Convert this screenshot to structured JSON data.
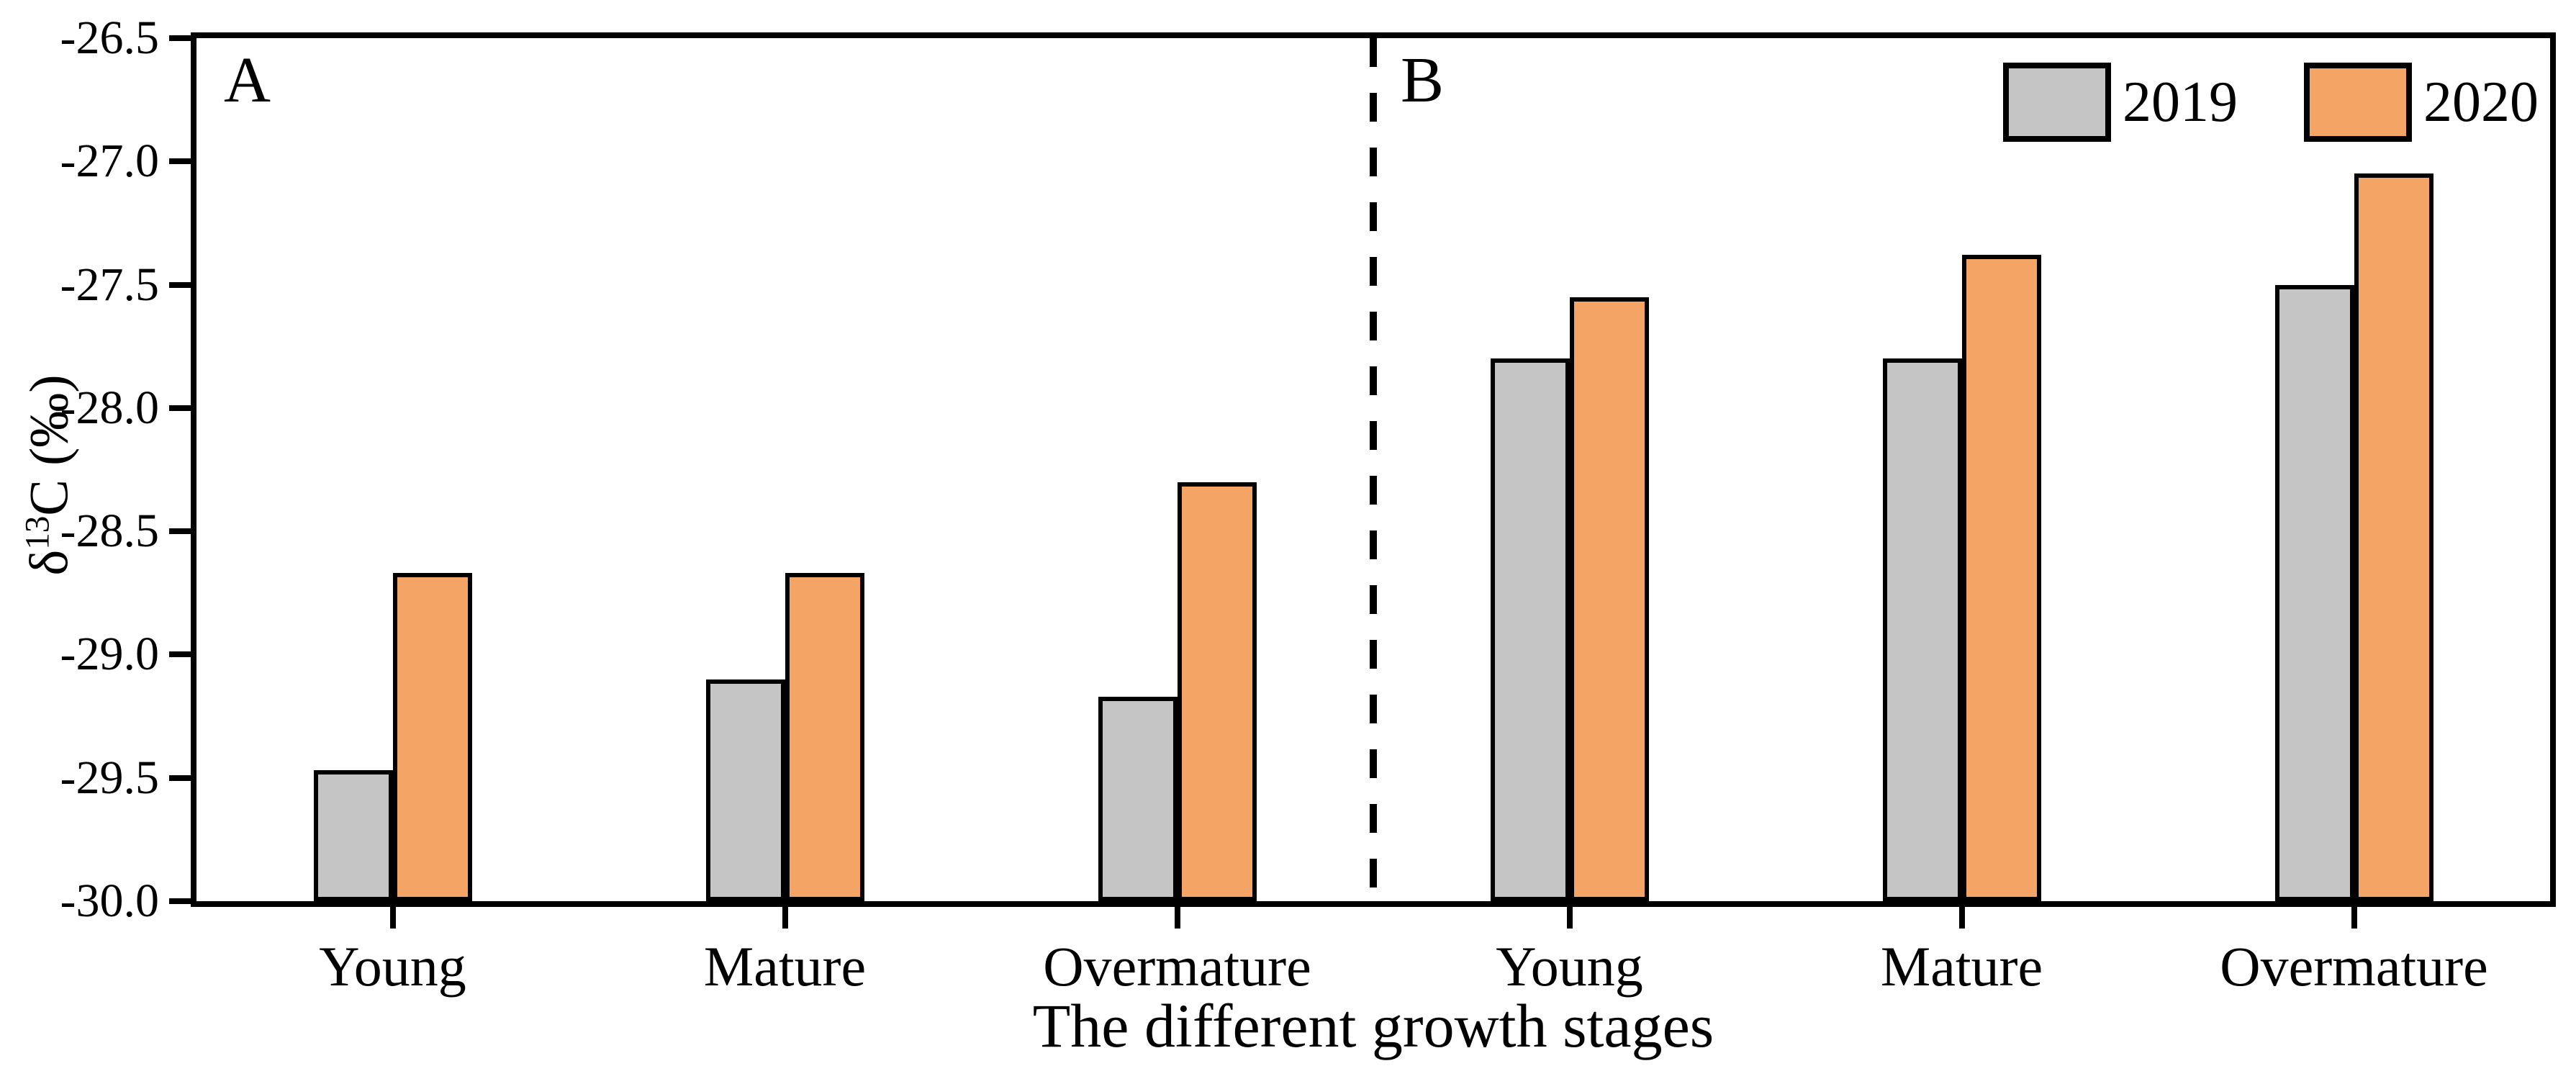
{
  "chart_data": {
    "type": "bar",
    "title": "",
    "xlabel": "The different growth stages",
    "ylabel": "δ13C (‰)",
    "ylabel_parts": {
      "prefix": "δ",
      "superscript": "13",
      "suffix": "C (‰)"
    },
    "ylim": [
      -30.0,
      -26.5
    ],
    "yticks": [
      -26.5,
      -27.0,
      -27.5,
      -28.0,
      -28.5,
      -29.0,
      -29.5,
      -30.0
    ],
    "categories": [
      "Young",
      "Mature",
      "Overmature"
    ],
    "panels": [
      {
        "label": "A",
        "series": [
          {
            "name": "2019",
            "color": "#C5C5C6",
            "values": [
              -29.47,
              -29.1,
              -29.17
            ]
          },
          {
            "name": "2020",
            "color": "#F4A464",
            "values": [
              -28.67,
              -28.67,
              -28.3
            ]
          }
        ]
      },
      {
        "label": "B",
        "series": [
          {
            "name": "2019",
            "color": "#C5C5C6",
            "values": [
              -27.8,
              -27.8,
              -27.5
            ]
          },
          {
            "name": "2020",
            "color": "#F4A464",
            "values": [
              -27.55,
              -27.38,
              -27.05
            ]
          }
        ]
      }
    ],
    "legend": {
      "position": "top-right",
      "entries": [
        {
          "label": "2019",
          "color": "#C5C5C6"
        },
        {
          "label": "2020",
          "color": "#F4A464"
        }
      ]
    },
    "separator_style": "dashed",
    "bar_border_color": "#000000",
    "axis_color": "#000000",
    "background": "#FFFFFF",
    "grid": "off"
  }
}
